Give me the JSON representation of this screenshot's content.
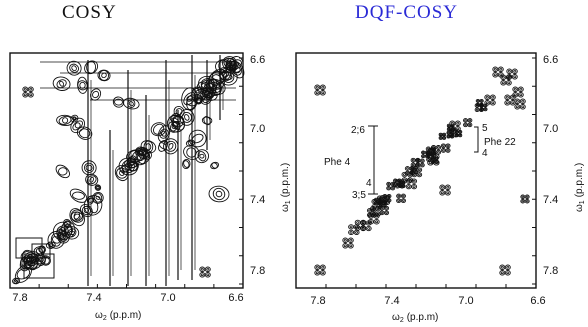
{
  "titles": {
    "left": "COSY",
    "right": "DQF-COSY"
  },
  "colors": {
    "right_title": "#2a2ad6",
    "contours": "#111111"
  },
  "panels": [
    {
      "id": "cosy",
      "x_ticks": [
        "7.8",
        "7.4",
        "7.0",
        "6.6"
      ],
      "y_ticks": [
        "6.6",
        "7.0",
        "7.4",
        "7.8"
      ],
      "xlabel_symbol": "ω",
      "xlabel_sub": "2",
      "xlabel_unit": "(p.p.m)",
      "ylabel_symbol": "ω",
      "ylabel_sub": "1",
      "ylabel_unit": "(p.p.m.)"
    },
    {
      "id": "dqf",
      "x_ticks": [
        "7.8",
        "7.4",
        "7.0",
        "6.6"
      ],
      "y_ticks": [
        "6.6",
        "7.0",
        "7.4",
        "7.8"
      ],
      "xlabel_symbol": "ω",
      "xlabel_sub": "2",
      "xlabel_unit": "(p.p.m)",
      "ylabel_symbol": "ω",
      "ylabel_sub": "1",
      "ylabel_unit": "(p.p.m.)"
    }
  ],
  "annotations": {
    "phe4_label": "Phe 4",
    "phe4_top": "2;6",
    "phe4_mid": "4",
    "phe4_bottom": "3;5",
    "phe22_label": "Phe 22",
    "phe22_top": "5",
    "phe22_bottom": "4"
  }
}
